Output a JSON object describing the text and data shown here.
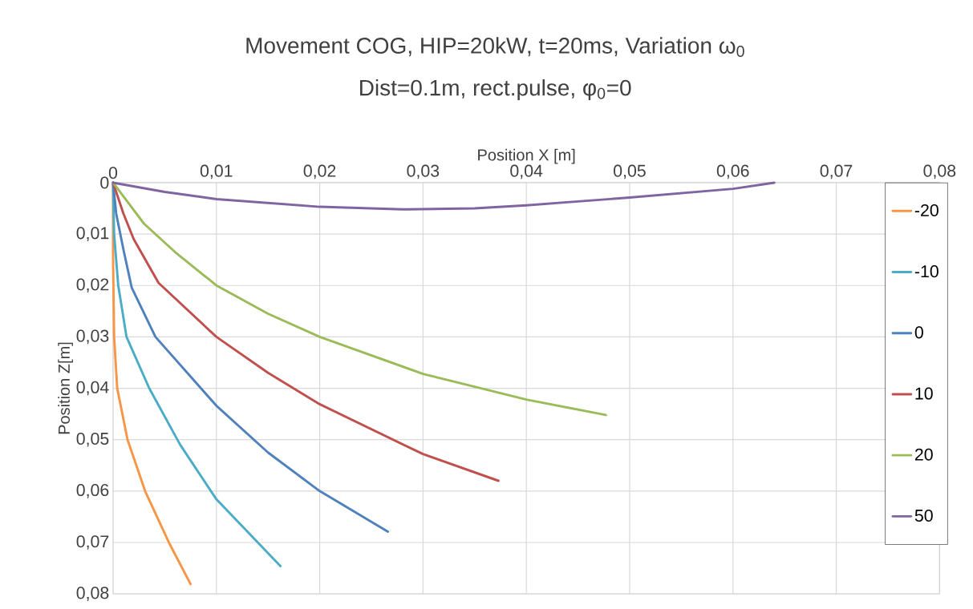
{
  "chart_data": {
    "type": "line",
    "title": "Movement COG, HIP=20kW, t=20ms, Variation ω$_{0}$",
    "subtitle": "Dist=0.1m, rect.pulse, φ$_{0}$=0",
    "xlabel": "Position X [m]",
    "ylabel": "Position Z[m]",
    "xlim": [
      0,
      0.08
    ],
    "ylim": [
      0.08,
      0
    ],
    "xticks": [
      0,
      {
        "value": 0.01,
        "label": "0,01"
      },
      {
        "value": 0.02,
        "label": "0,02"
      },
      {
        "value": 0.03,
        "label": "0,03"
      },
      {
        "value": 0.04,
        "label": "0,04"
      },
      {
        "value": 0.05,
        "label": "0,05"
      },
      {
        "value": 0.06,
        "label": "0,06"
      },
      {
        "value": 0.07,
        "label": "0,07"
      },
      {
        "value": 0.08,
        "label": "0,08"
      }
    ],
    "yticks": [
      0,
      {
        "value": 0.01,
        "label": "0,01"
      },
      {
        "value": 0.02,
        "label": "0,02"
      },
      {
        "value": 0.03,
        "label": "0,03"
      },
      {
        "value": 0.04,
        "label": "0,04"
      },
      {
        "value": 0.05,
        "label": "0,05"
      },
      {
        "value": 0.06,
        "label": "0,06"
      },
      {
        "value": 0.07,
        "label": "0,07"
      },
      {
        "value": 0.08,
        "label": "0,08"
      }
    ],
    "grid": true,
    "legend": "right",
    "series": [
      {
        "name": "-20",
        "color": "#f79646",
        "x": [
          0,
          0,
          0.0001,
          0.0004,
          0.0014,
          0.0031,
          0.0054,
          0.0075
        ],
        "values": [
          0,
          0.015,
          0.03,
          0.04,
          0.05,
          0.06,
          0.07,
          0.0781
        ]
      },
      {
        "name": "-10",
        "color": "#4bacc6",
        "x": [
          0,
          0.0001,
          0.0005,
          0.0013,
          0.0035,
          0.0065,
          0.01,
          0.0162
        ],
        "values": [
          0,
          0.01,
          0.02,
          0.03,
          0.04,
          0.051,
          0.0616,
          0.0746
        ]
      },
      {
        "name": "0",
        "color": "#4f81bd",
        "x": [
          0,
          0.0003,
          0.001,
          0.0018,
          0.0041,
          0.01,
          0.015,
          0.02,
          0.0266
        ],
        "values": [
          0,
          0.006,
          0.013,
          0.0204,
          0.03,
          0.0434,
          0.0525,
          0.06,
          0.0679
        ]
      },
      {
        "name": "10",
        "color": "#c0504d",
        "x": [
          0,
          0.001,
          0.002,
          0.0044,
          0.01,
          0.015,
          0.02,
          0.03,
          0.0373
        ],
        "values": [
          0,
          0.006,
          0.011,
          0.0195,
          0.03,
          0.037,
          0.0431,
          0.0528,
          0.058
        ]
      },
      {
        "name": "20",
        "color": "#9bbb59",
        "x": [
          0,
          0.003,
          0.006,
          0.01,
          0.015,
          0.02,
          0.03,
          0.04,
          0.0477
        ],
        "values": [
          0,
          0.008,
          0.0135,
          0.02,
          0.0255,
          0.03,
          0.0372,
          0.0422,
          0.0452
        ]
      },
      {
        "name": "50",
        "color": "#8064a2",
        "x": [
          0,
          0.005,
          0.01,
          0.02,
          0.028,
          0.035,
          0.04,
          0.05,
          0.06,
          0.064
        ],
        "values": [
          0,
          0.0018,
          0.0032,
          0.0047,
          0.0052,
          0.005,
          0.0044,
          0.0029,
          0.0012,
          0
        ]
      }
    ]
  }
}
